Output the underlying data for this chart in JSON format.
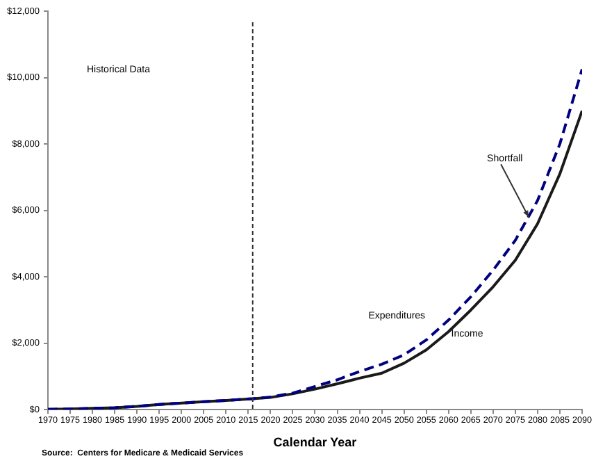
{
  "chart_data": {
    "type": "line",
    "xlabel": "Calendar Year",
    "x": [
      1970,
      1975,
      1980,
      1985,
      1990,
      1995,
      2000,
      2005,
      2010,
      2016,
      2020,
      2025,
      2030,
      2035,
      2040,
      2045,
      2050,
      2055,
      2060,
      2065,
      2070,
      2075,
      2080,
      2085,
      2090
    ],
    "series": [
      {
        "name": "Expenditures",
        "color": "#000080",
        "line_style": "dashed",
        "values": [
          10,
          20,
          40,
          60,
          100,
          160,
          200,
          240,
          280,
          330,
          380,
          500,
          700,
          900,
          1150,
          1370,
          1650,
          2100,
          2700,
          3400,
          4200,
          5100,
          6300,
          8000,
          10250
        ]
      },
      {
        "name": "Income",
        "color": "#1a1a1a",
        "line_style": "solid",
        "values": [
          10,
          20,
          40,
          60,
          100,
          160,
          200,
          240,
          280,
          330,
          370,
          480,
          620,
          780,
          950,
          1100,
          1400,
          1800,
          2350,
          3000,
          3700,
          4500,
          5600,
          7100,
          9000
        ]
      }
    ],
    "xlim": [
      1970,
      2090
    ],
    "xticks": [
      1970,
      1975,
      1980,
      1985,
      1990,
      1995,
      2000,
      2005,
      2010,
      2015,
      2020,
      2025,
      2030,
      2035,
      2040,
      2045,
      2050,
      2055,
      2060,
      2065,
      2070,
      2075,
      2080,
      2085,
      2090
    ],
    "ylim": [
      0,
      12000
    ],
    "yticks": [
      {
        "value": 0,
        "label": "$0"
      },
      {
        "value": 2000,
        "label": "$2,000"
      },
      {
        "value": 4000,
        "label": "$4,000"
      },
      {
        "value": 6000,
        "label": "$6,000"
      },
      {
        "value": 8000,
        "label": "$8,000"
      },
      {
        "value": 10000,
        "label": "$10,000"
      },
      {
        "value": 12000,
        "label": "$12,000"
      }
    ],
    "ref_lines": [
      {
        "axis": "x",
        "value": 2016,
        "color": "#333333",
        "line_style": "dashed"
      }
    ],
    "annotations": [
      "Historical Data",
      {
        "text": "Shortfall",
        "x": 2078,
        "y": 5800
      },
      "Source:  Centers for Medicare & Medicaid Services"
    ],
    "grid": false,
    "legend": false,
    "marker": "none"
  }
}
